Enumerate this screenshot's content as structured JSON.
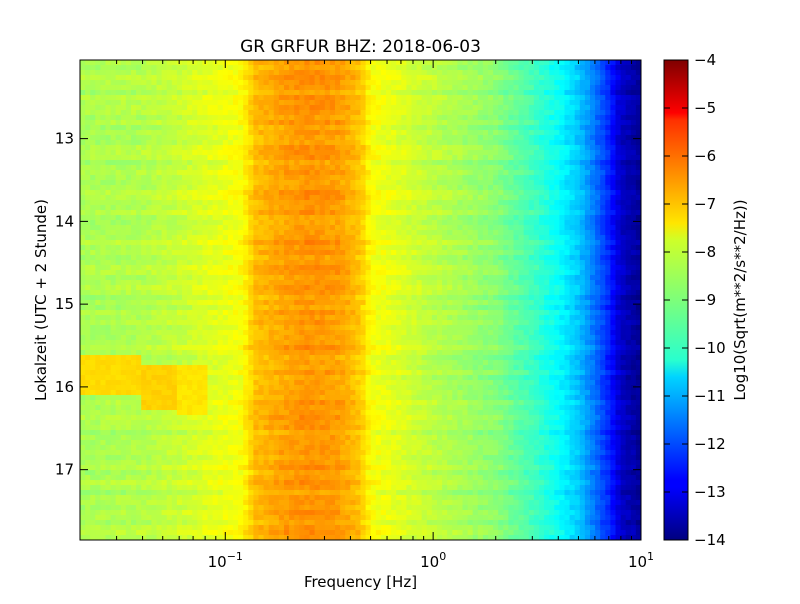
{
  "chart_data": {
    "type": "heatmap",
    "title": "GR GRFUR BHZ: 2018-06-03",
    "xlabel": "Frequency [Hz]",
    "ylabel": "Lokalzeit (UTC + 2 Stunde)",
    "colorbar_label": "Log10(Sqrt(m**2/s**2/Hz))",
    "x_scale": "log",
    "xlim": [
      0.02,
      10
    ],
    "ylim": [
      17.85,
      12.05
    ],
    "y_inverted": true,
    "x_ticks": [
      {
        "value": 0.1,
        "base": "10",
        "exp": "-1"
      },
      {
        "value": 1,
        "base": "10",
        "exp": "0"
      },
      {
        "value": 10,
        "base": "10",
        "exp": "1"
      }
    ],
    "y_ticks": [
      {
        "value": 13,
        "label": "13"
      },
      {
        "value": 14,
        "label": "14"
      },
      {
        "value": 15,
        "label": "15"
      },
      {
        "value": 16,
        "label": "16"
      },
      {
        "value": 17,
        "label": "17"
      }
    ],
    "color_range": [
      -14,
      -4
    ],
    "colormap": "jet",
    "colorbar_ticks": [
      {
        "value": -4,
        "label": "−4"
      },
      {
        "value": -5,
        "label": "−5"
      },
      {
        "value": -6,
        "label": "−6"
      },
      {
        "value": -7,
        "label": "−7"
      },
      {
        "value": -8,
        "label": "−8"
      },
      {
        "value": -9,
        "label": "−9"
      },
      {
        "value": -10,
        "label": "−10"
      },
      {
        "value": -11,
        "label": "−11"
      },
      {
        "value": -12,
        "label": "−12"
      },
      {
        "value": -13,
        "label": "−13"
      },
      {
        "value": -14,
        "label": "−14"
      }
    ],
    "spectrum_profile": [
      {
        "frequency": 0.02,
        "value": -8.6
      },
      {
        "frequency": 0.04,
        "value": -8.5
      },
      {
        "frequency": 0.06,
        "value": -8.3
      },
      {
        "frequency": 0.08,
        "value": -8.1
      },
      {
        "frequency": 0.12,
        "value": -7.8
      },
      {
        "frequency": 0.14,
        "value": -7.1
      },
      {
        "frequency": 0.2,
        "value": -6.8
      },
      {
        "frequency": 0.25,
        "value": -6.7
      },
      {
        "frequency": 0.35,
        "value": -6.8
      },
      {
        "frequency": 0.45,
        "value": -7.2
      },
      {
        "frequency": 0.5,
        "value": -7.8
      },
      {
        "frequency": 1.0,
        "value": -8.4
      },
      {
        "frequency": 2.0,
        "value": -8.9
      },
      {
        "frequency": 3.0,
        "value": -9.6
      },
      {
        "frequency": 4.0,
        "value": -10.2
      },
      {
        "frequency": 5.0,
        "value": -10.8
      },
      {
        "frequency": 6.0,
        "value": -11.6
      },
      {
        "frequency": 7.0,
        "value": -12.4
      },
      {
        "frequency": 8.0,
        "value": -13.3
      },
      {
        "frequency": 10.0,
        "value": -13.8
      }
    ],
    "anomalies": [
      {
        "f_min": 0.02,
        "f_max": 0.04,
        "t_min": 15.6,
        "t_max": 16.1,
        "value": -7.4
      },
      {
        "f_min": 0.04,
        "f_max": 0.06,
        "t_min": 15.75,
        "t_max": 16.3,
        "value": -7.3
      },
      {
        "f_min": 0.06,
        "f_max": 0.08,
        "t_min": 15.75,
        "t_max": 16.35,
        "value": -7.5
      }
    ]
  }
}
